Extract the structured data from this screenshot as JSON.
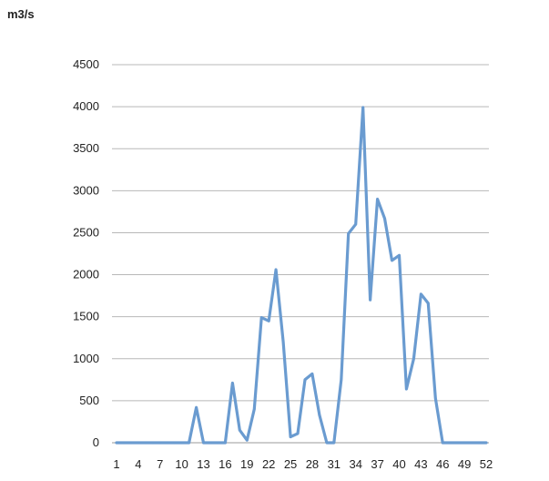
{
  "chart_data": {
    "type": "line",
    "ylabel": "m3/s",
    "ylim": [
      0,
      4500
    ],
    "yticks": [
      0,
      500,
      1000,
      1500,
      2000,
      2500,
      3000,
      3500,
      4000,
      4500
    ],
    "xlim": [
      1,
      52
    ],
    "xtick_labels": [
      "1",
      "4",
      "7",
      "10",
      "13",
      "16",
      "19",
      "22",
      "25",
      "28",
      "31",
      "34",
      "37",
      "40",
      "43",
      "46",
      "49",
      "52"
    ],
    "grid": "horizontal",
    "legend": "none",
    "line_color": "#6a9bd0",
    "series": [
      {
        "x": [
          1,
          2,
          3,
          4,
          5,
          6,
          7,
          8,
          9,
          10,
          11,
          12,
          13,
          14,
          15,
          16,
          17,
          18,
          19,
          20,
          21,
          22,
          23,
          24,
          25,
          26,
          27,
          28,
          29,
          30,
          31,
          32,
          33,
          34,
          35,
          36,
          37,
          38,
          39,
          40,
          41,
          42,
          43,
          44,
          45,
          46,
          47,
          48,
          49,
          50,
          51,
          52
        ],
        "values": [
          0,
          0,
          0,
          0,
          0,
          0,
          0,
          0,
          0,
          0,
          0,
          420,
          0,
          0,
          0,
          0,
          710,
          150,
          30,
          400,
          1490,
          1450,
          2060,
          1200,
          70,
          110,
          750,
          820,
          330,
          0,
          0,
          750,
          2490,
          2600,
          3990,
          1700,
          2900,
          2670,
          2170,
          2230,
          640,
          1000,
          1770,
          1660,
          530,
          0,
          0,
          0,
          0,
          0,
          0,
          0
        ]
      }
    ]
  }
}
